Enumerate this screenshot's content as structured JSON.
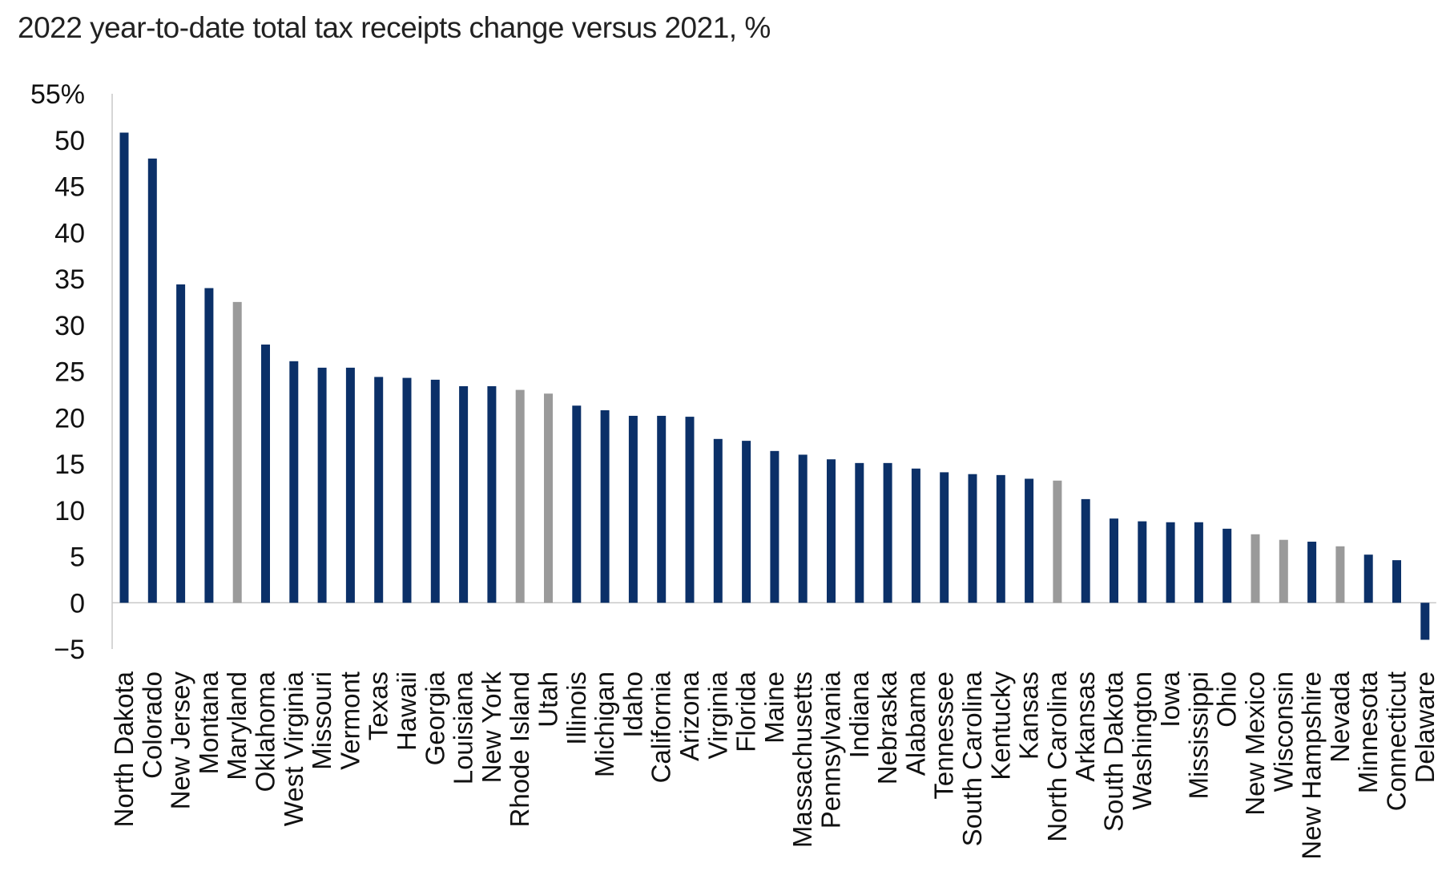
{
  "chart_data": {
    "type": "bar",
    "title": "2022 year-to-date total tax receipts change versus 2021, %",
    "ylim": [
      -5,
      55
    ],
    "yticks": [
      -5,
      0,
      5,
      10,
      15,
      20,
      25,
      30,
      35,
      40,
      45,
      50,
      55
    ],
    "ytick_labels": [
      "−5",
      "0",
      "5",
      "10",
      "15",
      "20",
      "25",
      "30",
      "35",
      "40",
      "45",
      "50",
      "55%"
    ],
    "grid": false,
    "colors": {
      "primary": "#0b3068",
      "highlight": "#9a9a9a"
    },
    "categories": [
      "North Dakota",
      "Colorado",
      "New Jersey",
      "Montana",
      "Maryland",
      "Oklahoma",
      "West Virginia",
      "Missouri",
      "Vermont",
      "Texas",
      "Hawaii",
      "Georgia",
      "Louisiana",
      "New York",
      "Rhode Island",
      "Utah",
      "Illinois",
      "Michigan",
      "Idaho",
      "California",
      "Arizona",
      "Virginia",
      "Florida",
      "Maine",
      "Massachusetts",
      "Pennsylvania",
      "Indiana",
      "Nebraska",
      "Alabama",
      "Tennessee",
      "South Carolina",
      "Kentucky",
      "Kansas",
      "North Carolina",
      "Arkansas",
      "South Dakota",
      "Washington",
      "Iowa",
      "Mississippi",
      "Ohio",
      "New Mexico",
      "Wisconsin",
      "New Hampshire",
      "Nevada",
      "Minnesota",
      "Connecticut",
      "Delaware"
    ],
    "values": [
      50.8,
      48.0,
      34.4,
      34.0,
      32.5,
      27.9,
      26.1,
      25.4,
      25.4,
      24.4,
      24.3,
      24.1,
      23.4,
      23.4,
      23.0,
      22.6,
      21.3,
      20.8,
      20.2,
      20.2,
      20.1,
      17.7,
      17.5,
      16.4,
      16.0,
      15.5,
      15.1,
      15.1,
      14.5,
      14.1,
      13.9,
      13.8,
      13.4,
      13.2,
      11.2,
      9.1,
      8.8,
      8.7,
      8.7,
      8.0,
      7.4,
      6.8,
      6.6,
      6.1,
      5.2,
      4.6,
      -4.0
    ],
    "highlight": [
      false,
      false,
      false,
      false,
      true,
      false,
      false,
      false,
      false,
      false,
      false,
      false,
      false,
      false,
      true,
      true,
      false,
      false,
      false,
      false,
      false,
      false,
      false,
      false,
      false,
      false,
      false,
      false,
      false,
      false,
      false,
      false,
      false,
      true,
      false,
      false,
      false,
      false,
      false,
      false,
      true,
      true,
      false,
      true,
      false,
      false,
      false
    ]
  }
}
